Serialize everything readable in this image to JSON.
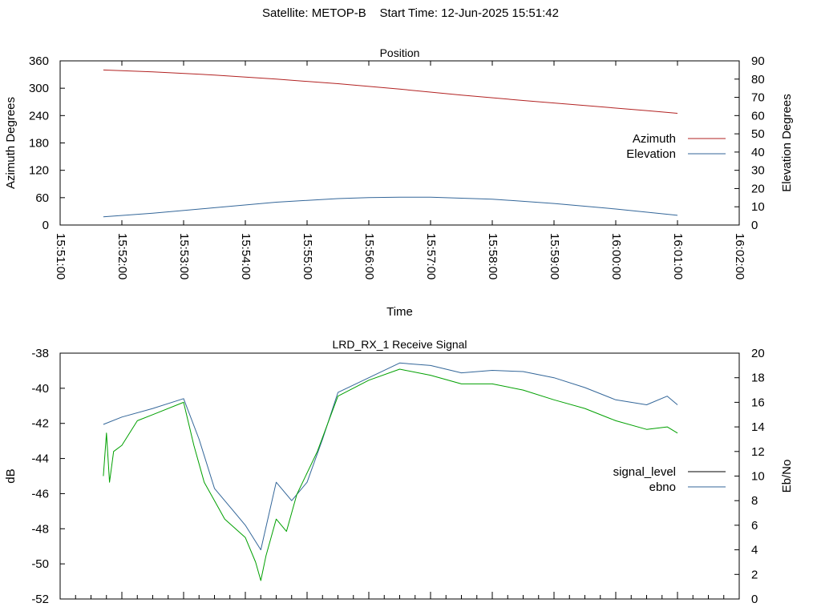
{
  "header": {
    "satellite_label": "Satellite: METOP-B",
    "start_time_label": "Start Time: 12-Jun-2025 15:51:42"
  },
  "chart_data": [
    {
      "type": "line",
      "title": "Position",
      "xlabel": "Time",
      "ylabel": "Azimuth Degrees",
      "y2label": "Elevation Degrees",
      "x_ticks": [
        "15:51:00",
        "15:52:00",
        "15:53:00",
        "15:54:00",
        "15:55:00",
        "15:56:00",
        "15:57:00",
        "15:58:00",
        "15:59:00",
        "16:00:00",
        "16:01:00",
        "16:02:00"
      ],
      "xlim": [
        "15:51:00",
        "16:02:00"
      ],
      "ylim": [
        0,
        360
      ],
      "y_ticks": [
        0,
        60,
        120,
        180,
        240,
        300,
        360
      ],
      "y2lim": [
        0,
        90
      ],
      "y2_ticks": [
        0,
        10,
        20,
        30,
        40,
        50,
        60,
        70,
        80,
        90
      ],
      "legend_position": "right",
      "series": [
        {
          "name": "Azimuth",
          "axis": "left",
          "color": "#b22222",
          "x": [
            "15:51:42",
            "15:52:30",
            "15:53:30",
            "15:54:30",
            "15:55:30",
            "15:56:30",
            "15:57:30",
            "15:58:30",
            "15:59:30",
            "16:00:30",
            "16:01:00"
          ],
          "values": [
            340,
            336,
            329,
            320,
            310,
            298,
            285,
            273,
            262,
            251,
            245
          ]
        },
        {
          "name": "Elevation",
          "axis": "right",
          "color": "#336699",
          "x": [
            "15:51:42",
            "15:52:30",
            "15:53:30",
            "15:54:30",
            "15:55:30",
            "15:56:00",
            "15:56:30",
            "15:57:00",
            "15:58:00",
            "15:59:00",
            "16:00:00",
            "16:01:00"
          ],
          "values": [
            4.5,
            6.5,
            9.5,
            12.5,
            14.5,
            15.0,
            15.3,
            15.3,
            14.2,
            11.8,
            8.8,
            5.3
          ]
        }
      ]
    },
    {
      "type": "line",
      "title": "LRD_RX_1 Receive Signal",
      "ylabel": "dB",
      "y2label": "Eb/No",
      "xlim": [
        "15:51:00",
        "16:02:00"
      ],
      "ylim": [
        -52,
        -38
      ],
      "y_ticks": [
        -52,
        -50,
        -48,
        -46,
        -44,
        -42,
        -40,
        -38
      ],
      "y2lim": [
        0,
        20
      ],
      "y2_ticks": [
        0,
        2,
        4,
        6,
        8,
        10,
        12,
        14,
        16,
        18,
        20
      ],
      "legend_position": "right",
      "series": [
        {
          "name": "signal_level",
          "axis": "left",
          "color": "#000000",
          "x": [],
          "values": []
        },
        {
          "name": "ebno",
          "axis": "right",
          "color": "#336699",
          "x": [
            "15:51:42",
            "15:52:00",
            "15:52:30",
            "15:53:00",
            "15:53:15",
            "15:53:30",
            "15:53:45",
            "15:54:00",
            "15:54:15",
            "15:54:30",
            "15:54:45",
            "15:55:00",
            "15:55:15",
            "15:55:30",
            "15:56:00",
            "15:56:30",
            "15:57:00",
            "15:57:30",
            "15:58:00",
            "15:58:30",
            "15:59:00",
            "15:59:30",
            "16:00:00",
            "16:00:30",
            "16:00:50",
            "16:01:00"
          ],
          "values": [
            14.2,
            14.8,
            15.5,
            16.3,
            13.0,
            9.0,
            7.5,
            6.0,
            4.0,
            9.5,
            8.0,
            9.5,
            13.0,
            16.8,
            18.0,
            19.2,
            19.0,
            18.4,
            18.6,
            18.5,
            18.0,
            17.2,
            16.2,
            15.8,
            16.5,
            15.8
          ]
        },
        {
          "name": "green trace",
          "axis": "right",
          "color": "#00a000",
          "x": [
            "15:51:42",
            "15:51:45",
            "15:51:48",
            "15:51:52",
            "15:52:00",
            "15:52:15",
            "15:52:30",
            "15:53:00",
            "15:53:10",
            "15:53:20",
            "15:53:40",
            "15:54:00",
            "15:54:10",
            "15:54:15",
            "15:54:20",
            "15:54:30",
            "15:54:40",
            "15:54:50",
            "15:55:10",
            "15:55:30",
            "15:56:00",
            "15:56:30",
            "15:57:00",
            "15:57:30",
            "15:58:00",
            "15:58:30",
            "15:59:00",
            "15:59:30",
            "16:00:00",
            "16:00:30",
            "16:00:50",
            "16:01:00"
          ],
          "values": [
            10.0,
            13.5,
            9.5,
            12.0,
            12.5,
            14.5,
            15.0,
            16.0,
            12.5,
            9.5,
            6.5,
            5.0,
            3.0,
            1.5,
            3.5,
            6.5,
            5.5,
            8.5,
            12.0,
            16.5,
            17.8,
            18.7,
            18.2,
            17.5,
            17.5,
            17.0,
            16.2,
            15.5,
            14.5,
            13.8,
            14.0,
            13.5
          ]
        }
      ]
    }
  ]
}
